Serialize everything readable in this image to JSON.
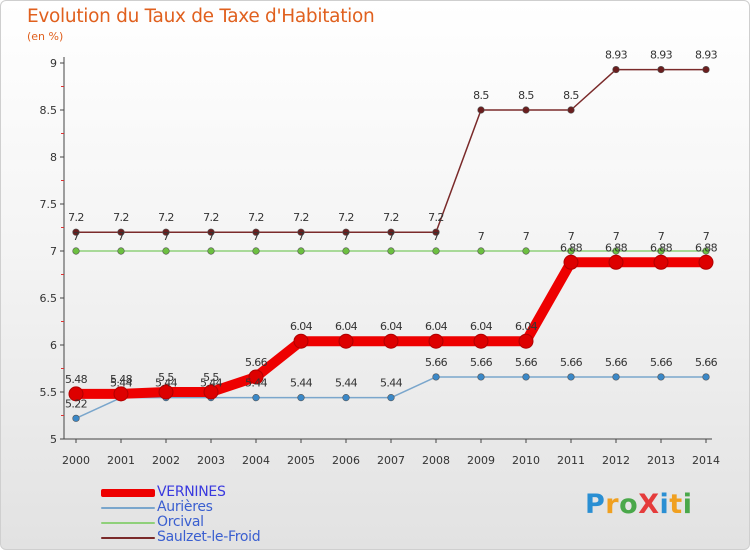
{
  "title": "Evolution du Taux de Taxe d'Habitation",
  "unit_label": "(en %)",
  "logo": {
    "text": "Proxiti",
    "letters": [
      {
        "ch": "P",
        "color": "#2a8fd3"
      },
      {
        "ch": "r",
        "color": "#f0a020"
      },
      {
        "ch": "o",
        "color": "#4aa84a"
      },
      {
        "ch": "X",
        "color": "#e53c3c"
      },
      {
        "ch": "i",
        "color": "#2a8fd3"
      },
      {
        "ch": "t",
        "color": "#f0a020"
      },
      {
        "ch": "i",
        "color": "#4aa84a"
      }
    ]
  },
  "chart_data": {
    "type": "line",
    "title": "Evolution du Taux de Taxe d'Habitation",
    "ylabel": "(en %)",
    "xlabel": "",
    "x": [
      "2000",
      "2001",
      "2002",
      "2003",
      "2004",
      "2005",
      "2006",
      "2007",
      "2008",
      "2009",
      "2010",
      "2011",
      "2012",
      "2013",
      "2014"
    ],
    "ylim": [
      5,
      9
    ],
    "yticks": [
      "5",
      "5.5",
      "6",
      "6.5",
      "7",
      "7.5",
      "8",
      "8.5",
      "9"
    ],
    "grid": false,
    "legend_position": "bottom-left",
    "series": [
      {
        "name": "Saulzet-le-Froid",
        "color": "#7a2a2a",
        "marker_color": "#6a1e1e",
        "emphasis": false,
        "values": [
          7.2,
          7.2,
          7.2,
          7.2,
          7.2,
          7.2,
          7.2,
          7.2,
          7.2,
          8.5,
          8.5,
          8.5,
          8.93,
          8.93,
          8.93
        ],
        "labels": [
          "7.2",
          "7.2",
          "7.2",
          "7.2",
          "7.2",
          "7.2",
          "7.2",
          "7.2",
          "7.2",
          "8.5",
          "8.5",
          "8.5",
          "8.93",
          "8.93",
          "8.93"
        ]
      },
      {
        "name": "Orcival",
        "color": "#8fd07a",
        "marker_color": "#6cc040",
        "emphasis": false,
        "values": [
          7,
          7,
          7,
          7,
          7,
          7,
          7,
          7,
          7,
          7,
          7,
          7,
          7,
          7,
          7
        ],
        "labels": [
          "7",
          "7",
          "7",
          "7",
          "7",
          "7",
          "7",
          "7",
          "7",
          "7",
          "7",
          "7",
          "7",
          "7",
          "7"
        ]
      },
      {
        "name": "Aurières",
        "color": "#7aa6cc",
        "marker_color": "#3a88c8",
        "emphasis": false,
        "values": [
          5.22,
          5.44,
          5.44,
          5.44,
          5.44,
          5.44,
          5.44,
          5.44,
          5.66,
          5.66,
          5.66,
          5.66,
          5.66,
          5.66,
          5.66
        ],
        "labels": [
          "5.22",
          "5.44",
          "5.44",
          "5.44",
          "5.44",
          "5.44",
          "5.44",
          "5.44",
          "5.66",
          "5.66",
          "5.66",
          "5.66",
          "5.66",
          "5.66",
          "5.66"
        ]
      },
      {
        "name": "VERNINES",
        "color": "#ee0000",
        "marker_color": "#dd0000",
        "emphasis": true,
        "values": [
          5.48,
          5.48,
          5.5,
          5.5,
          5.66,
          6.04,
          6.04,
          6.04,
          6.04,
          6.04,
          6.04,
          6.88,
          6.88,
          6.88,
          6.88
        ],
        "labels": [
          "5.48",
          "5.48",
          "5.5",
          "5.5",
          "5.66",
          "6.04",
          "6.04",
          "6.04",
          "6.04",
          "6.04",
          "6.04",
          "6.88",
          "6.88",
          "6.88",
          "6.88"
        ]
      }
    ],
    "legend": [
      "VERNINES",
      "Aurières",
      "Orcival",
      "Saulzet-le-Froid"
    ]
  }
}
